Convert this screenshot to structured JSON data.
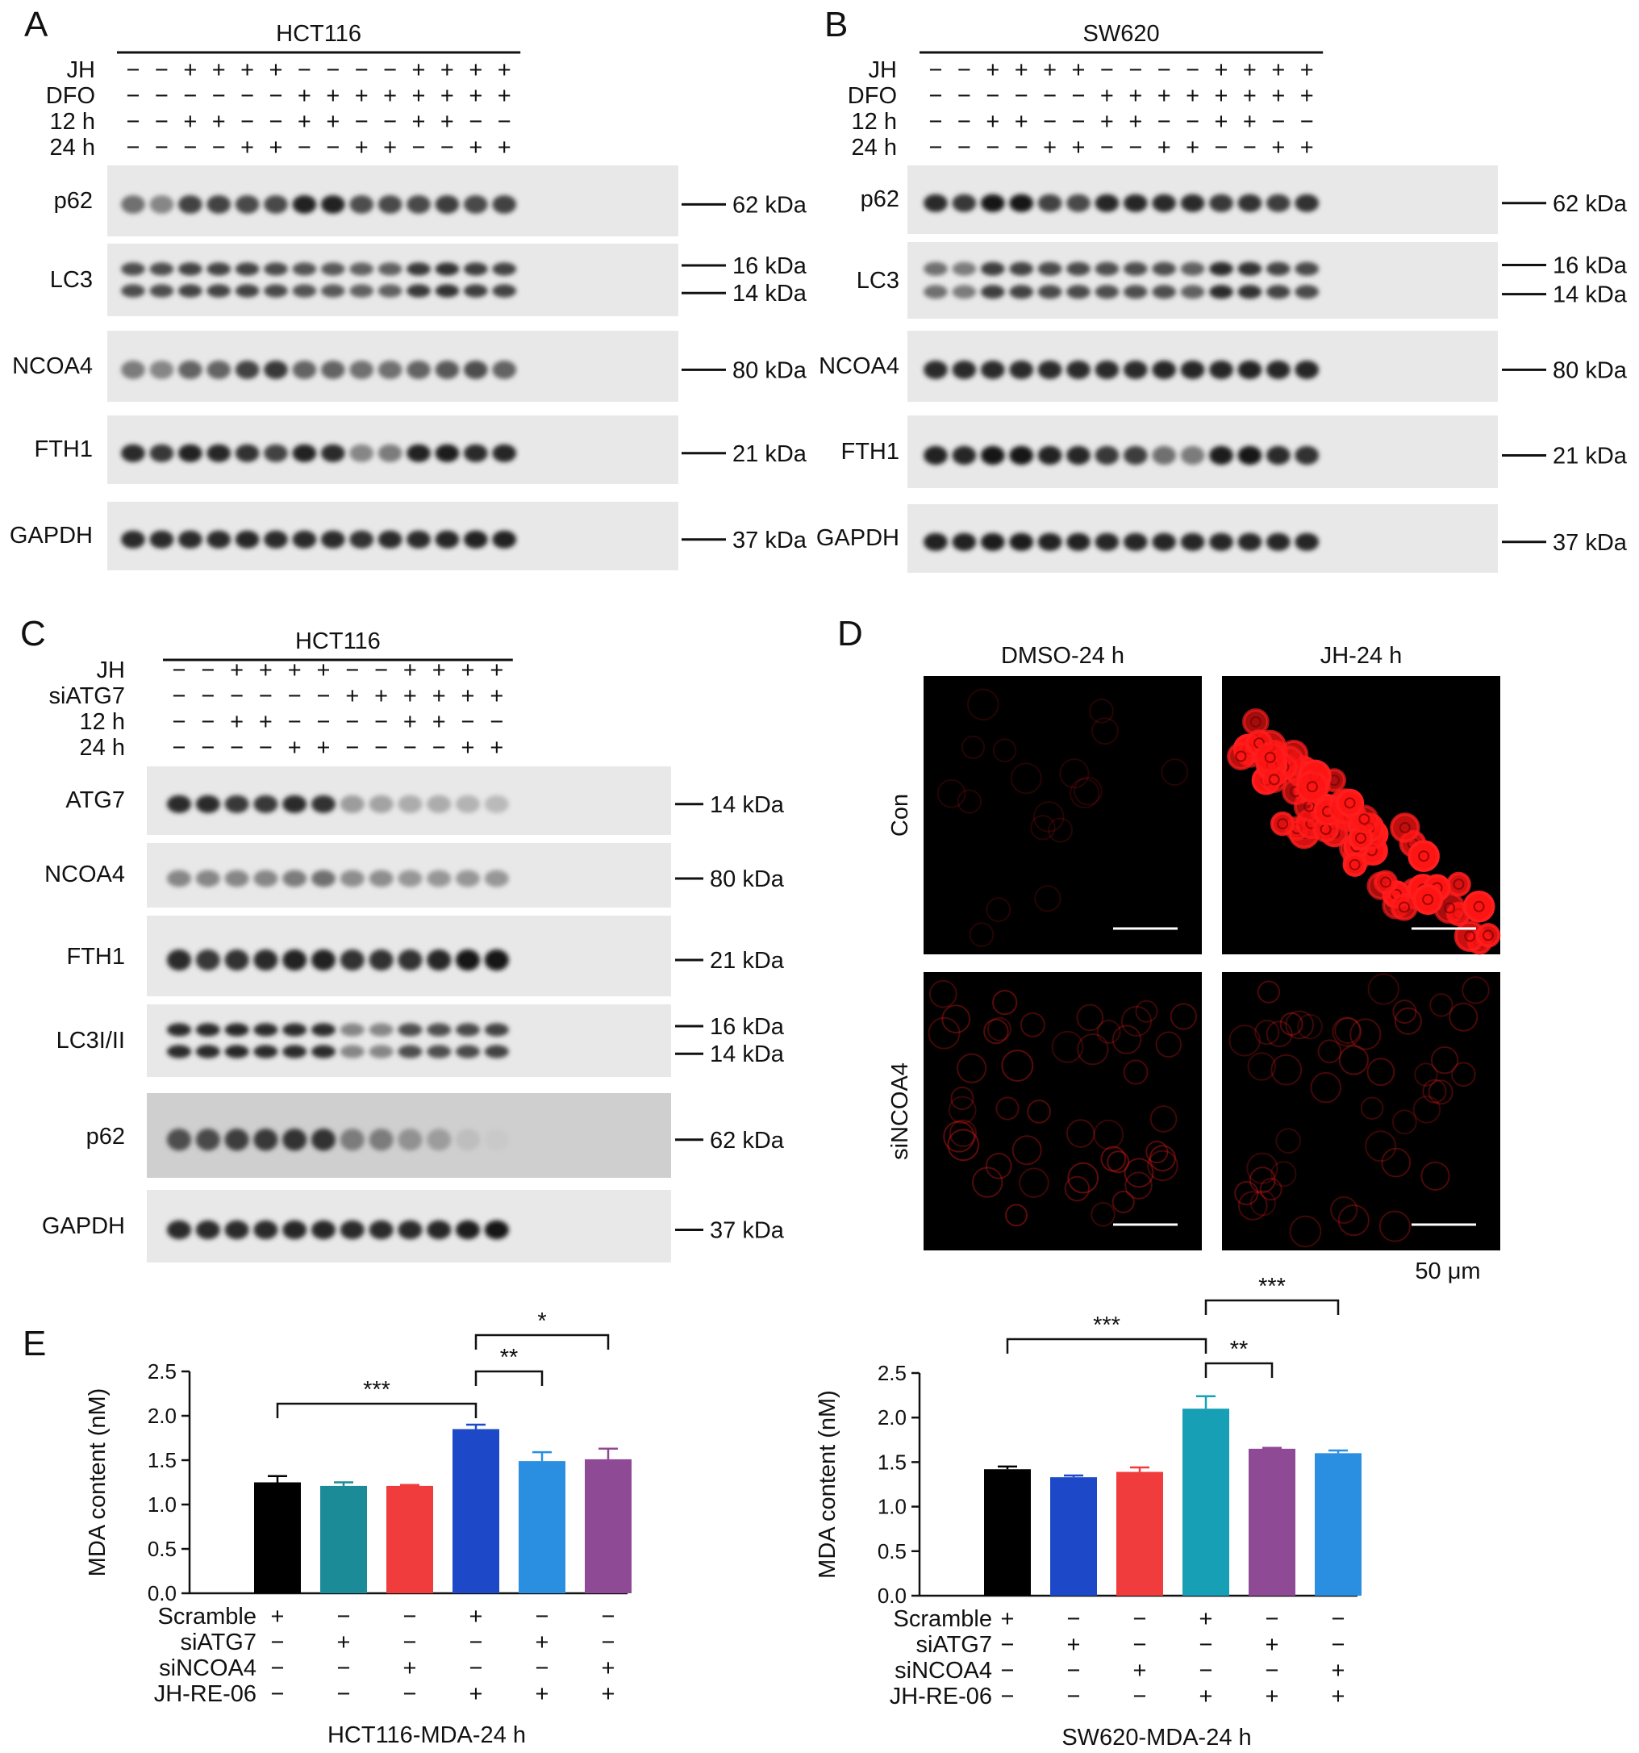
{
  "figure": {
    "panels": {
      "A": {
        "letter": "A",
        "cell_line": "HCT116",
        "conditions": [
          {
            "name": "JH",
            "signs": [
              "−",
              "−",
              "+",
              "+",
              "+",
              "+",
              "−",
              "−",
              "−",
              "−",
              "+",
              "+",
              "+",
              "+"
            ]
          },
          {
            "name": "DFO",
            "signs": [
              "−",
              "−",
              "−",
              "−",
              "−",
              "−",
              "+",
              "+",
              "+",
              "+",
              "+",
              "+",
              "+",
              "+"
            ]
          },
          {
            "name": "12 h",
            "signs": [
              "−",
              "−",
              "+",
              "+",
              "−",
              "−",
              "+",
              "+",
              "−",
              "−",
              "+",
              "+",
              "−",
              "−"
            ]
          },
          {
            "name": "24 h",
            "signs": [
              "−",
              "−",
              "−",
              "−",
              "+",
              "+",
              "−",
              "−",
              "+",
              "+",
              "−",
              "−",
              "+",
              "+"
            ]
          }
        ],
        "blots": [
          {
            "name": "p62",
            "kda": [
              "62 kDa"
            ],
            "intensity": [
              0.55,
              0.45,
              0.75,
              0.75,
              0.72,
              0.72,
              0.9,
              0.9,
              0.7,
              0.72,
              0.72,
              0.78,
              0.72,
              0.75
            ]
          },
          {
            "name": "LC3",
            "kda": [
              "16 kDa",
              "14 kDa"
            ],
            "intensity": [
              0.7,
              0.7,
              0.75,
              0.75,
              0.75,
              0.72,
              0.68,
              0.65,
              0.62,
              0.62,
              0.8,
              0.82,
              0.78,
              0.75
            ]
          },
          {
            "name": "NCOA4",
            "kda": [
              "80 kDa"
            ],
            "intensity": [
              0.5,
              0.45,
              0.6,
              0.6,
              0.75,
              0.8,
              0.6,
              0.6,
              0.55,
              0.55,
              0.6,
              0.65,
              0.7,
              0.6
            ]
          },
          {
            "name": "FTH1",
            "kda": [
              "21 kDa"
            ],
            "intensity": [
              0.85,
              0.8,
              0.9,
              0.88,
              0.82,
              0.75,
              0.9,
              0.85,
              0.45,
              0.5,
              0.9,
              0.92,
              0.85,
              0.88
            ]
          },
          {
            "name": "GAPDH",
            "kda": [
              "37 kDa"
            ],
            "intensity": [
              0.85,
              0.85,
              0.85,
              0.85,
              0.88,
              0.85,
              0.85,
              0.85,
              0.82,
              0.85,
              0.85,
              0.88,
              0.9,
              0.9
            ]
          }
        ]
      },
      "B": {
        "letter": "B",
        "cell_line": "SW620",
        "conditions": [
          {
            "name": "JH",
            "signs": [
              "−",
              "−",
              "+",
              "+",
              "+",
              "+",
              "−",
              "−",
              "−",
              "−",
              "+",
              "+",
              "+",
              "+"
            ]
          },
          {
            "name": "DFO",
            "signs": [
              "−",
              "−",
              "−",
              "−",
              "−",
              "−",
              "+",
              "+",
              "+",
              "+",
              "+",
              "+",
              "+",
              "+"
            ]
          },
          {
            "name": "12 h",
            "signs": [
              "−",
              "−",
              "+",
              "+",
              "−",
              "−",
              "+",
              "+",
              "−",
              "−",
              "+",
              "+",
              "−",
              "−"
            ]
          },
          {
            "name": "24 h",
            "signs": [
              "−",
              "−",
              "−",
              "−",
              "+",
              "+",
              "−",
              "−",
              "+",
              "+",
              "−",
              "−",
              "+",
              "+"
            ]
          }
        ],
        "blots": [
          {
            "name": "p62",
            "kda": [
              "62 kDa"
            ],
            "intensity": [
              0.85,
              0.8,
              0.95,
              0.95,
              0.75,
              0.72,
              0.88,
              0.88,
              0.85,
              0.85,
              0.8,
              0.82,
              0.78,
              0.82
            ]
          },
          {
            "name": "LC3",
            "kda": [
              "16 kDa",
              "14 kDa"
            ],
            "intensity": [
              0.55,
              0.5,
              0.78,
              0.75,
              0.72,
              0.72,
              0.7,
              0.7,
              0.7,
              0.62,
              0.85,
              0.82,
              0.75,
              0.72
            ]
          },
          {
            "name": "NCOA4",
            "kda": [
              "80 kDa"
            ],
            "intensity": [
              0.85,
              0.85,
              0.85,
              0.85,
              0.85,
              0.85,
              0.85,
              0.85,
              0.88,
              0.88,
              0.88,
              0.9,
              0.88,
              0.88
            ]
          },
          {
            "name": "FTH1",
            "kda": [
              "21 kDa"
            ],
            "intensity": [
              0.9,
              0.88,
              0.95,
              0.95,
              0.9,
              0.88,
              0.8,
              0.78,
              0.55,
              0.5,
              0.92,
              0.95,
              0.85,
              0.82
            ]
          },
          {
            "name": "GAPDH",
            "kda": [
              "37 kDa"
            ],
            "intensity": [
              0.9,
              0.9,
              0.92,
              0.92,
              0.9,
              0.9,
              0.88,
              0.88,
              0.88,
              0.88,
              0.88,
              0.88,
              0.88,
              0.88
            ]
          }
        ]
      },
      "C": {
        "letter": "C",
        "cell_line": "HCT116",
        "conditions": [
          {
            "name": "JH",
            "signs": [
              "−",
              "−",
              "+",
              "+",
              "+",
              "+",
              "−",
              "−",
              "+",
              "+",
              "+",
              "+"
            ]
          },
          {
            "name": "siATG7",
            "signs": [
              "−",
              "−",
              "−",
              "−",
              "−",
              "−",
              "+",
              "+",
              "+",
              "+",
              "+",
              "+"
            ]
          },
          {
            "name": "12 h",
            "signs": [
              "−",
              "−",
              "+",
              "+",
              "−",
              "−",
              "−",
              "−",
              "+",
              "+",
              "−",
              "−"
            ]
          },
          {
            "name": "24 h",
            "signs": [
              "−",
              "−",
              "−",
              "−",
              "+",
              "+",
              "−",
              "−",
              "−",
              "−",
              "+",
              "+"
            ]
          }
        ],
        "blots": [
          {
            "name": "ATG7",
            "kda": [
              "14 kDa"
            ],
            "intensity": [
              0.85,
              0.85,
              0.8,
              0.8,
              0.85,
              0.82,
              0.35,
              0.32,
              0.28,
              0.28,
              0.25,
              0.22
            ]
          },
          {
            "name": "NCOA4",
            "kda": [
              "80 kDa"
            ],
            "intensity": [
              0.45,
              0.45,
              0.45,
              0.45,
              0.5,
              0.55,
              0.42,
              0.42,
              0.38,
              0.38,
              0.38,
              0.38
            ]
          },
          {
            "name": "FTH1",
            "kda": [
              "21 kDa"
            ],
            "intensity": [
              0.85,
              0.8,
              0.82,
              0.85,
              0.9,
              0.9,
              0.82,
              0.82,
              0.82,
              0.88,
              0.95,
              0.95
            ]
          },
          {
            "name": "LC3I/II",
            "kda": [
              "16 kDa",
              "14 kDa"
            ],
            "intensity": [
              0.85,
              0.85,
              0.88,
              0.85,
              0.85,
              0.85,
              0.45,
              0.45,
              0.7,
              0.7,
              0.72,
              0.75
            ]
          },
          {
            "name": "p62",
            "kda": [
              "62 kDa"
            ],
            "intensity": [
              0.7,
              0.72,
              0.78,
              0.8,
              0.82,
              0.82,
              0.5,
              0.5,
              0.4,
              0.35,
              0.2,
              0.15
            ]
          },
          {
            "name": "GAPDH",
            "kda": [
              "37 kDa"
            ],
            "intensity": [
              0.85,
              0.85,
              0.85,
              0.85,
              0.88,
              0.88,
              0.85,
              0.85,
              0.85,
              0.88,
              0.92,
              0.95
            ]
          }
        ]
      },
      "D": {
        "letter": "D",
        "columns": [
          "DMSO-24 h",
          "JH-24 h"
        ],
        "rows": [
          "Con",
          "siNCOA4"
        ],
        "scale_bar": "50 μm",
        "signal": [
          [
            0.08,
            1.0
          ],
          [
            0.35,
            0.3
          ]
        ]
      },
      "E": {
        "letter": "E",
        "ylabel": "MDA content (nM)",
        "yticks": [
          "0.0",
          "0.5",
          "1.0",
          "1.5",
          "2.0",
          "2.5"
        ],
        "row_labels": [
          "Scramble",
          "siATG7",
          "siNCOA4",
          "JH-RE-06"
        ],
        "charts": [
          {
            "xlabel": "HCT116-MDA-24 h",
            "ylim": [
              0,
              2.5
            ],
            "values": [
              1.25,
              1.21,
              1.21,
              1.85,
              1.49,
              1.51
            ],
            "errors": [
              0.07,
              0.04,
              0.01,
              0.05,
              0.1,
              0.12
            ],
            "colors": [
              "#000000",
              "#1b8b97",
              "#f03c3c",
              "#1d49c9",
              "#2a8fe0",
              "#8f4a96"
            ],
            "signs": [
              [
                "+",
                "−",
                "−",
                "−"
              ],
              [
                "−",
                "+",
                "−",
                "−"
              ],
              [
                "−",
                "−",
                "+",
                "−"
              ],
              [
                "+",
                "−",
                "−",
                "+"
              ],
              [
                "−",
                "+",
                "−",
                "+"
              ],
              [
                "−",
                "−",
                "+",
                "+"
              ]
            ],
            "brackets": [
              {
                "from": 0,
                "to": 3,
                "label": "***"
              },
              {
                "from": 3,
                "to": 4,
                "label": "**"
              },
              {
                "from": 3,
                "to": 5,
                "label": "*"
              }
            ]
          },
          {
            "xlabel": "SW620-MDA-24 h",
            "ylim": [
              0,
              2.5
            ],
            "values": [
              1.42,
              1.33,
              1.39,
              2.1,
              1.65,
              1.6
            ],
            "errors": [
              0.03,
              0.02,
              0.05,
              0.14,
              0.01,
              0.03
            ],
            "colors": [
              "#000000",
              "#1d49c9",
              "#f03c3c",
              "#17a0b5",
              "#8f4a96",
              "#2a8fe0"
            ],
            "signs": [
              [
                "+",
                "−",
                "−",
                "−"
              ],
              [
                "−",
                "+",
                "−",
                "−"
              ],
              [
                "−",
                "−",
                "+",
                "−"
              ],
              [
                "+",
                "−",
                "−",
                "+"
              ],
              [
                "−",
                "+",
                "−",
                "+"
              ],
              [
                "−",
                "−",
                "+",
                "+"
              ]
            ],
            "brackets": [
              {
                "from": 0,
                "to": 3,
                "label": "***"
              },
              {
                "from": 3,
                "to": 4,
                "label": "**"
              },
              {
                "from": 3,
                "to": 5,
                "label": "***"
              }
            ]
          }
        ]
      }
    }
  },
  "chart_data": [
    {
      "type": "bar",
      "categories": [
        "Scramble",
        "siATG7",
        "siNCOA4",
        "Scramble + JH-RE-06",
        "siATG7 + JH-RE-06",
        "siNCOA4 + JH-RE-06"
      ],
      "values": [
        1.25,
        1.21,
        1.21,
        1.85,
        1.49,
        1.51
      ],
      "xlabel": "HCT116-MDA-24 h",
      "ylabel": "MDA content (nM)",
      "ylim": [
        0,
        2.5
      ]
    },
    {
      "type": "bar",
      "categories": [
        "Scramble",
        "siATG7",
        "siNCOA4",
        "Scramble + JH-RE-06",
        "siATG7 + JH-RE-06",
        "siNCOA4 + JH-RE-06"
      ],
      "values": [
        1.42,
        1.33,
        1.39,
        2.1,
        1.65,
        1.6
      ],
      "xlabel": "SW620-MDA-24 h",
      "ylabel": "MDA content (nM)",
      "ylim": [
        0,
        2.5
      ]
    }
  ]
}
